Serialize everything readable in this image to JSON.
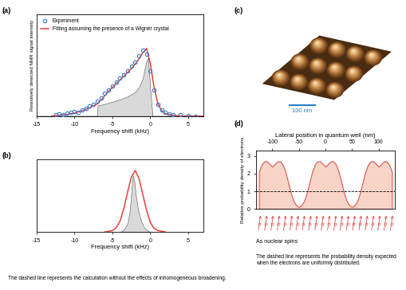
{
  "chart_data": [
    {
      "panel_label": "(a)",
      "type": "line",
      "x_label": "Frequency shift (kHz)",
      "y_label": "Resistively detected NMR signal intensity",
      "xlim": [
        -15,
        7
      ],
      "xticks": [
        -15,
        -10,
        -5,
        0,
        5
      ],
      "ylim": [
        0,
        1.35
      ],
      "tick_labels": "x",
      "legend": "upper left",
      "series": [
        {
          "name": "Experiment",
          "type": "scatter",
          "marker": "circle",
          "color": "#3a7cc7",
          "x": [
            -12.5,
            -12,
            -11.5,
            -11,
            -10.5,
            -10,
            -9.5,
            -9,
            -8.5,
            -8,
            -7.5,
            -7,
            -6.5,
            -6,
            -5.5,
            -5,
            -4.5,
            -4,
            -3.5,
            -3,
            -2.5,
            -2,
            -1.5,
            -1,
            -0.5,
            0,
            0.5,
            1,
            1.5,
            2,
            2.5,
            3,
            4,
            5,
            6
          ],
          "values": [
            0.02,
            0.03,
            0.02,
            0.04,
            0.05,
            0.06,
            0.05,
            0.08,
            0.1,
            0.13,
            0.15,
            0.2,
            0.24,
            0.3,
            0.35,
            0.4,
            0.45,
            0.5,
            0.55,
            0.6,
            0.66,
            0.72,
            0.8,
            0.88,
            0.82,
            0.6,
            0.35,
            0.15,
            0.08,
            0.05,
            0.03,
            0.02,
            0.02,
            0.01,
            0
          ]
        },
        {
          "name": "Fitting assuming the presence of a Wigner crystal",
          "type": "line",
          "color": "#e8413c",
          "x": [
            -13,
            -12,
            -11,
            -10,
            -9,
            -8,
            -7,
            -6.5,
            -6,
            -5.5,
            -5,
            -4.5,
            -4,
            -3.5,
            -3,
            -2.5,
            -2,
            -1.5,
            -1,
            -0.5,
            0,
            0.5,
            1,
            1.5,
            2,
            3,
            4,
            5,
            6,
            7
          ],
          "values": [
            0,
            0.01,
            0.02,
            0.04,
            0.07,
            0.11,
            0.16,
            0.21,
            0.27,
            0.33,
            0.38,
            0.43,
            0.48,
            0.53,
            0.58,
            0.63,
            0.69,
            0.76,
            0.84,
            0.9,
            0.7,
            0.38,
            0.16,
            0.07,
            0.03,
            0.01,
            0,
            0,
            0,
            0
          ]
        },
        {
          "type": "area",
          "color": "#d9d9d9",
          "x": [
            -15,
            -7,
            -6.95,
            -6,
            -5,
            -4,
            -3,
            -2,
            -1.5,
            -1,
            -0.6,
            -0.3,
            0,
            0.3,
            7
          ],
          "values": [
            0,
            0,
            0.14,
            0.16,
            0.19,
            0.22,
            0.26,
            0.32,
            0.38,
            0.5,
            0.7,
            0.78,
            0.35,
            0,
            0
          ]
        }
      ]
    },
    {
      "panel_label": "(b)",
      "type": "line",
      "x_label": "Frequency shift (kHz)",
      "xlim": [
        -15,
        7
      ],
      "xticks": [
        -15,
        -10,
        -5,
        0,
        5
      ],
      "ylim": [
        0,
        1
      ],
      "tick_labels": "x",
      "note": "The dashed line represents the calculation without the effects of inhomogeneous broadening.",
      "series": [
        {
          "type": "line",
          "color": "#e8413c",
          "x": [
            -6,
            -5,
            -4.5,
            -4,
            -3.5,
            -3,
            -2.5,
            -2,
            -1.5,
            -1,
            -0.5,
            0,
            0.5,
            1,
            2
          ],
          "values": [
            0,
            0.02,
            0.06,
            0.15,
            0.32,
            0.55,
            0.76,
            0.85,
            0.74,
            0.52,
            0.3,
            0.13,
            0.05,
            0.02,
            0
          ]
        },
        {
          "type": "area",
          "color": "#d9d9d9",
          "x": [
            -4,
            -3.5,
            -3,
            -2.7,
            -2.5,
            -2.3,
            -2.1,
            -1.9,
            -1.6,
            -1.2,
            -0.8,
            -0.4,
            0
          ],
          "values": [
            0,
            0.03,
            0.12,
            0.3,
            0.55,
            0.78,
            0.7,
            0.5,
            0.3,
            0.15,
            0.06,
            0.02,
            0
          ]
        }
      ]
    },
    {
      "panel_label": "(c)",
      "type": "image",
      "scale_bar": "100 nm"
    },
    {
      "panel_label": "(d)",
      "type": "area",
      "color": "#f7d4c6",
      "x_label": "Lateral position in quantum well (nm)",
      "y_label": "Relative probability density of electrons",
      "xlim": [
        -130,
        130
      ],
      "xticks": [
        -100,
        -50,
        0,
        50,
        100
      ],
      "ylim": [
        0,
        3.3
      ],
      "yticks": [
        0,
        1,
        2,
        3
      ],
      "x": [
        -125,
        -120,
        -115,
        -110,
        -105,
        -100,
        -95,
        -90,
        -85,
        -80,
        -75,
        -70,
        -65,
        -60,
        -55,
        -50,
        -45,
        -40,
        -35,
        -30,
        -25,
        -20,
        -15,
        -10,
        -5,
        0,
        5,
        10,
        15,
        20,
        25,
        30,
        35,
        40,
        45,
        50,
        55,
        60,
        65,
        70,
        75,
        80,
        85,
        90,
        95,
        100,
        105,
        110,
        115,
        120,
        125
      ],
      "values": [
        2.1,
        2.5,
        2.7,
        2.7,
        2.55,
        2.4,
        2.55,
        2.7,
        2.7,
        2.5,
        2.1,
        1.5,
        0.9,
        0.45,
        0.2,
        0.1,
        0.2,
        0.45,
        0.9,
        1.5,
        2.1,
        2.5,
        2.7,
        2.7,
        2.55,
        2.4,
        2.55,
        2.7,
        2.7,
        2.5,
        2.1,
        1.5,
        0.9,
        0.45,
        0.2,
        0.1,
        0.2,
        0.45,
        0.9,
        1.5,
        2.1,
        2.5,
        2.7,
        2.7,
        2.55,
        2.4,
        2.55,
        2.7,
        2.7,
        2.5,
        2.1
      ],
      "uniform_density": 1,
      "spin_label": "As nuclear spins",
      "note": "The dashed line represents the probability density expected when the electrons are uniformly distributed."
    }
  ]
}
